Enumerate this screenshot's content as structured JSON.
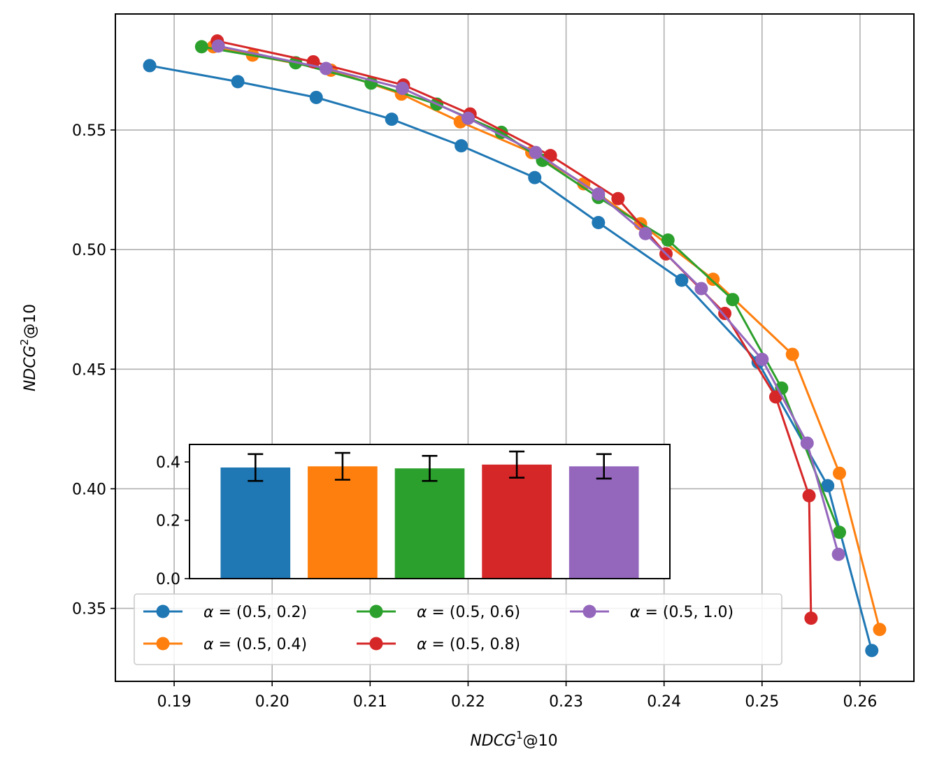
{
  "chart_data": [
    {
      "type": "line",
      "title": "",
      "xlabel_main": "NDCG",
      "xlabel_sup": "1",
      "xlabel_suffix": "@10",
      "ylabel_main": "NDCG",
      "ylabel_sup": "2",
      "ylabel_suffix": "@10",
      "xlim": [
        0.184,
        0.2655
      ],
      "ylim": [
        0.3195,
        0.5985
      ],
      "xticks": [
        0.19,
        0.2,
        0.21,
        0.22,
        0.23,
        0.24,
        0.25,
        0.26
      ],
      "xtick_labels": [
        "0.19",
        "0.20",
        "0.21",
        "0.22",
        "0.23",
        "0.24",
        "0.25",
        "0.26"
      ],
      "yticks": [
        0.35,
        0.4,
        0.45,
        0.5,
        0.55
      ],
      "ytick_labels": [
        "0.35",
        "0.40",
        "0.45",
        "0.50",
        "0.55"
      ],
      "grid": true,
      "legend_position": "lower-left",
      "series": [
        {
          "name": "α = (0.5, 0.2)",
          "color": "#1f77b4",
          "x": [
            0.1875,
            0.1965,
            0.2045,
            0.2122,
            0.2193,
            0.2268,
            0.2333,
            0.2418,
            0.2496,
            0.2567,
            0.2612
          ],
          "y": [
            0.5769,
            0.5702,
            0.5636,
            0.5545,
            0.5434,
            0.5301,
            0.5113,
            0.4872,
            0.4529,
            0.4013,
            0.3324
          ]
        },
        {
          "name": "α = (0.5, 0.4)",
          "color": "#ff7f0e",
          "x": [
            0.194,
            0.198,
            0.206,
            0.2132,
            0.2192,
            0.2265,
            0.2318,
            0.2376,
            0.245,
            0.2531,
            0.2579,
            0.262
          ],
          "y": [
            0.5848,
            0.5813,
            0.575,
            0.565,
            0.5534,
            0.5406,
            0.5275,
            0.5108,
            0.4876,
            0.4562,
            0.4065,
            0.3412
          ]
        },
        {
          "name": "α = (0.5, 0.6)",
          "color": "#2ca02c",
          "x": [
            0.1928,
            0.2024,
            0.2101,
            0.2168,
            0.2234,
            0.2276,
            0.2333,
            0.2404,
            0.247,
            0.252,
            0.2579
          ],
          "y": [
            0.5848,
            0.5781,
            0.5696,
            0.5608,
            0.549,
            0.5373,
            0.5218,
            0.504,
            0.4791,
            0.4421,
            0.3818
          ]
        },
        {
          "name": "α = (0.5, 0.8)",
          "color": "#d62728",
          "x": [
            0.1944,
            0.2042,
            0.2134,
            0.2202,
            0.2284,
            0.2353,
            0.2402,
            0.2462,
            0.2514,
            0.2548,
            0.255
          ],
          "y": [
            0.5872,
            0.5785,
            0.5688,
            0.5567,
            0.5393,
            0.5213,
            0.4982,
            0.4733,
            0.4384,
            0.3971,
            0.3459
          ]
        },
        {
          "name": "α = (0.5, 1.0)",
          "color": "#9467bd",
          "x": [
            0.1945,
            0.2055,
            0.2133,
            0.22,
            0.2269,
            0.2333,
            0.2381,
            0.2438,
            0.25,
            0.2546,
            0.2578
          ],
          "y": [
            0.5851,
            0.5757,
            0.5674,
            0.5549,
            0.5406,
            0.5232,
            0.5067,
            0.4837,
            0.4541,
            0.4191,
            0.3726
          ]
        }
      ]
    },
    {
      "type": "bar",
      "title": "",
      "xlabel": "",
      "ylabel": "",
      "ylim": [
        0,
        0.46
      ],
      "yticks": [
        0.0,
        0.2,
        0.4
      ],
      "ytick_labels": [
        "0.0",
        "0.2",
        "0.4"
      ],
      "grid": false,
      "legend_position": "none",
      "categories": [
        "α = (0.5, 0.2)",
        "α = (0.5, 0.4)",
        "α = (0.5, 0.6)",
        "α = (0.5, 0.8)",
        "α = (0.5, 1.0)"
      ],
      "values": [
        0.381,
        0.385,
        0.378,
        0.391,
        0.385
      ],
      "errors": [
        0.046,
        0.046,
        0.043,
        0.045,
        0.042
      ],
      "colors": [
        "#1f77b4",
        "#ff7f0e",
        "#2ca02c",
        "#d62728",
        "#9467bd"
      ]
    }
  ]
}
